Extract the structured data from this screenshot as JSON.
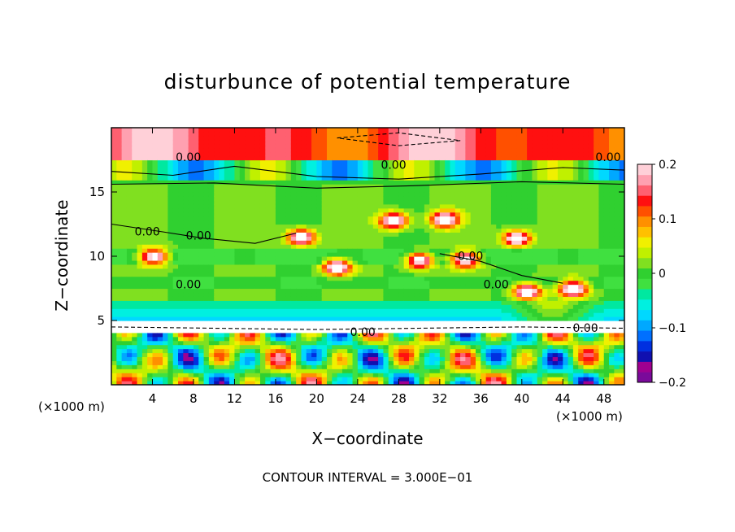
{
  "chart_data": {
    "type": "heatmap",
    "title": "disturbunce of potential temperature",
    "xlabel": "X−coordinate",
    "ylabel": "Z−coordinate",
    "x_unit_left": "(×1000 m)",
    "x_unit_right": "(×1000 m)",
    "footer": "CONTOUR INTERVAL = 3.000E−01",
    "xlim": [
      0,
      50
    ],
    "ylim": [
      0,
      20
    ],
    "x_ticks": [
      4,
      8,
      12,
      16,
      20,
      24,
      28,
      32,
      36,
      40,
      44,
      48
    ],
    "x_tick_labels": [
      "4",
      "8",
      "12",
      "16",
      "20",
      "24",
      "28",
      "32",
      "36",
      "40",
      "44",
      "48"
    ],
    "y_ticks": [
      5,
      10,
      15
    ],
    "y_tick_labels": [
      "5",
      "10",
      "15"
    ],
    "colorbar": {
      "range": [
        -0.2,
        0.2
      ],
      "ticks": [
        0.2,
        0.1,
        0,
        -0.1,
        -0.2
      ],
      "tick_labels": [
        "0.2",
        "0.1",
        "0",
        "−0.1",
        "−0.2"
      ],
      "colors": [
        "#7a0a9a",
        "#a00090",
        "#1010b0",
        "#0030e0",
        "#0070ff",
        "#00a8ff",
        "#00d8ff",
        "#00f0e0",
        "#00e8a0",
        "#40e040",
        "#30d030",
        "#80e020",
        "#c0f000",
        "#f0f000",
        "#ffc000",
        "#ff9000",
        "#ff5000",
        "#ff1010",
        "#ff6070",
        "#ffa0b0",
        "#ffd0d8"
      ]
    },
    "contour_labels": [
      {
        "text": "0.00",
        "x": 7.5,
        "y": 17.4
      },
      {
        "text": "0.00",
        "x": 27.5,
        "y": 16.8
      },
      {
        "text": "0.00",
        "x": 49,
        "y": 17.4
      },
      {
        "text": "0.00",
        "x": 3.5,
        "y": 11.6
      },
      {
        "text": "0.00",
        "x": 8.5,
        "y": 11.3
      },
      {
        "text": "0.00",
        "x": 7.5,
        "y": 7.5
      },
      {
        "text": "0.00",
        "x": 35,
        "y": 9.7
      },
      {
        "text": "0.00",
        "x": 37.5,
        "y": 7.5
      },
      {
        "text": "0.00",
        "x": 24.5,
        "y": 3.8
      },
      {
        "text": "0.00",
        "x": 46.2,
        "y": 4.1
      }
    ]
  }
}
